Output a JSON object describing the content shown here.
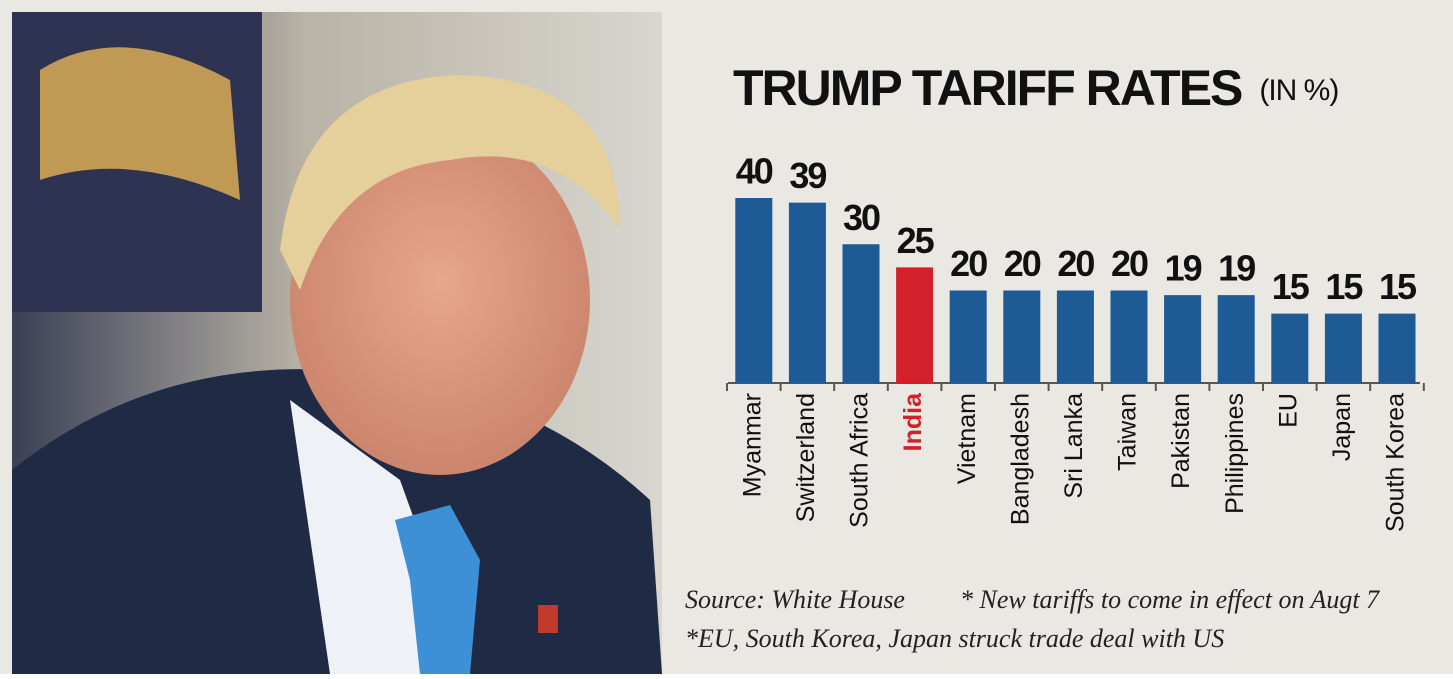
{
  "chart_data": {
    "type": "bar",
    "title": "TRUMP TARIFF RATES",
    "subtitle": "(IN %)",
    "categories": [
      "Myanmar",
      "Switzerland",
      "South Africa",
      "India",
      "Vietnam",
      "Bangladesh",
      "Sri Lanka",
      "Taiwan",
      "Pakistan",
      "Philippines",
      "EU",
      "Japan",
      "South Korea"
    ],
    "values": [
      40,
      39,
      30,
      25,
      20,
      20,
      20,
      20,
      19,
      19,
      15,
      15,
      15
    ],
    "colors": [
      "#1d5a96",
      "#1d5a96",
      "#1d5a96",
      "#d3212b",
      "#1d5a96",
      "#1d5a96",
      "#1d5a96",
      "#1d5a96",
      "#1d5a96",
      "#1d5a96",
      "#1d5a96",
      "#1d5a96",
      "#1d5a96"
    ],
    "label_colors": [
      "#111111",
      "#111111",
      "#111111",
      "#d3212b",
      "#111111",
      "#111111",
      "#111111",
      "#111111",
      "#111111",
      "#111111",
      "#111111",
      "#111111",
      "#111111"
    ],
    "notes": [
      "Source: White House",
      "* New tariffs to come in effect on Augt 7",
      "*EU, South Korea, Japan struck trade deal with US"
    ]
  }
}
